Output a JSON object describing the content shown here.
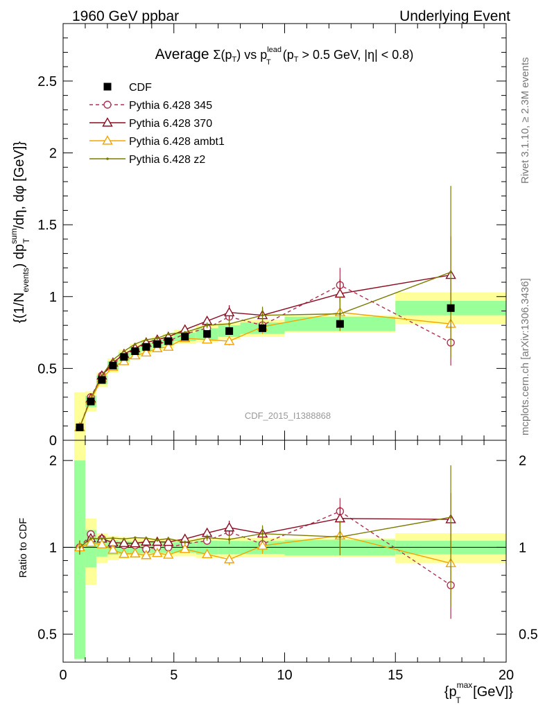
{
  "header": {
    "left": "1960 GeV ppbar",
    "right": "Underlying Event"
  },
  "side_labels": {
    "rivet": "Rivet 3.1.10, ≥ 2.3M events",
    "mcplots": "mcplots.cern.ch [arXiv:1306.3436]"
  },
  "watermark": "CDF_2015_I1388868",
  "chart_data": {
    "type": "scatter",
    "title_parts": {
      "prefix": "Average ",
      "sigma": "Σ(p",
      "t": "T",
      "mid": ") vs p",
      "lead": "lead",
      "t2": "T",
      "suffix": " (p",
      "t3": "T",
      "cut": " > 0.5 GeV, |η| < 0.8)"
    },
    "ylabel_parts": {
      "a": "{(1/N",
      "events": "events",
      "b": ") dp",
      "sum": "sum",
      "t": "T",
      "c": " /dη, dφ [GeV]}"
    },
    "xlabel_parts": {
      "a": "{p",
      "max": "max",
      "t": "T",
      "b": " [GeV]}"
    },
    "ratio_ylabel": "Ratio to CDF",
    "xlim": [
      0,
      20
    ],
    "ylim": [
      0,
      2.9
    ],
    "ratio_ylim": [
      0.4,
      2.35
    ],
    "ratio_log": true,
    "x_ticks": [
      "0",
      "5",
      "10",
      "15",
      "20"
    ],
    "y_ticks": [
      "0",
      "0.5",
      "1",
      "1.5",
      "2",
      "2.5"
    ],
    "ratio_ticks": [
      "0.5",
      "1",
      "2"
    ],
    "legend_position": "top-left",
    "x": [
      0.75,
      1.25,
      1.75,
      2.25,
      2.75,
      3.25,
      3.75,
      4.25,
      4.75,
      5.5,
      6.5,
      7.5,
      9.0,
      12.5,
      17.5
    ],
    "band_edges": [
      0.5,
      1.0,
      1.5,
      2.0,
      2.5,
      3.0,
      3.5,
      4.0,
      4.5,
      5.0,
      6.0,
      7.0,
      8.0,
      10.0,
      15.0,
      20.0
    ],
    "data": {
      "name": "CDF",
      "color": "#000000",
      "values": [
        0.09,
        0.27,
        0.42,
        0.52,
        0.58,
        0.62,
        0.65,
        0.67,
        0.69,
        0.72,
        0.74,
        0.76,
        0.78,
        0.81,
        0.92
      ],
      "band_inner": [
        0.09,
        0.04,
        0.03,
        0.03,
        0.03,
        0.03,
        0.03,
        0.03,
        0.03,
        0.03,
        0.04,
        0.04,
        0.04,
        0.05,
        0.05
      ],
      "band_outer": [
        0.22,
        0.07,
        0.05,
        0.05,
        0.05,
        0.05,
        0.05,
        0.05,
        0.05,
        0.05,
        0.06,
        0.06,
        0.06,
        0.06,
        0.11
      ],
      "band_inner_color": "#99ff99",
      "band_outer_color": "#ffff99"
    },
    "series": [
      {
        "name": "Pythia 6.428 345",
        "color": "#b03050",
        "marker": "open-circle",
        "dashed": true,
        "values": [
          0.09,
          0.3,
          0.45,
          0.53,
          0.59,
          0.63,
          0.64,
          0.67,
          0.69,
          0.74,
          0.78,
          0.86,
          0.8,
          1.08,
          0.68
        ],
        "errors": [
          0.005,
          0.005,
          0.005,
          0.005,
          0.005,
          0.005,
          0.005,
          0.005,
          0.005,
          0.008,
          0.02,
          0.03,
          0.05,
          0.12,
          0.16
        ]
      },
      {
        "name": "Pythia 6.428 370",
        "color": "#8b0a20",
        "marker": "open-triangle",
        "dashed": false,
        "values": [
          0.09,
          0.29,
          0.45,
          0.54,
          0.6,
          0.64,
          0.68,
          0.7,
          0.72,
          0.77,
          0.83,
          0.89,
          0.87,
          1.02,
          1.15
        ],
        "errors": [
          0.005,
          0.005,
          0.005,
          0.005,
          0.005,
          0.005,
          0.005,
          0.01,
          0.01,
          0.01,
          0.02,
          0.05,
          0.05,
          0.1,
          0.27
        ]
      },
      {
        "name": "Pythia 6.428 ambt1",
        "color": "#f5a300",
        "marker": "open-triangle",
        "dashed": false,
        "values": [
          0.09,
          0.28,
          0.43,
          0.51,
          0.55,
          0.59,
          0.61,
          0.64,
          0.65,
          0.71,
          0.7,
          0.69,
          0.79,
          0.89,
          0.81
        ],
        "errors": [
          0.005,
          0.005,
          0.005,
          0.005,
          0.005,
          0.005,
          0.005,
          0.005,
          0.01,
          0.01,
          0.02,
          0.03,
          0.05,
          0.09,
          0.19
        ]
      },
      {
        "name": "Pythia 6.428 z2",
        "color": "#7a7a00",
        "marker": "dot",
        "dashed": false,
        "values": [
          0.09,
          0.29,
          0.45,
          0.56,
          0.62,
          0.67,
          0.7,
          0.71,
          0.74,
          0.75,
          0.8,
          0.81,
          0.87,
          0.88,
          1.17
        ],
        "errors": [
          0.005,
          0.005,
          0.005,
          0.005,
          0.005,
          0.005,
          0.005,
          0.01,
          0.01,
          0.01,
          0.02,
          0.03,
          0.06,
          0.12,
          0.6
        ]
      }
    ]
  }
}
